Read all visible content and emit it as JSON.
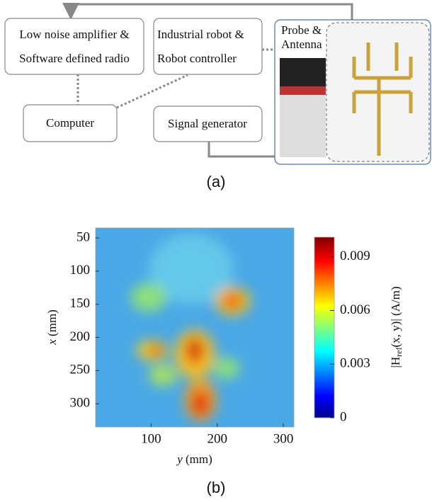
{
  "diagram": {
    "boxes": [
      {
        "lines": [
          "Low noise amplifier &",
          "Software defined radio"
        ]
      },
      {
        "lines": [
          "Industrial robot &",
          "Robot controller"
        ]
      },
      {
        "lines": [
          "Computer"
        ]
      },
      {
        "lines": [
          "Signal generator"
        ]
      }
    ],
    "photo_label": [
      "Probe &",
      "Antenna"
    ],
    "caption": "(a)"
  },
  "heatmap": {
    "x_label": [
      "y",
      "(mm)"
    ],
    "y_label": [
      "x",
      "(mm)"
    ],
    "xlim": [
      16,
      316
    ],
    "xticks": [
      100,
      200,
      300
    ],
    "ylim": [
      35,
      335
    ],
    "yticks": [
      50,
      100,
      150,
      200,
      250,
      300
    ],
    "colorbar": {
      "label": [
        "|H",
        "ref",
        "(x, y)| (A/m)"
      ],
      "lim": [
        0,
        0.0101
      ],
      "ticks": [
        0,
        0.003,
        0.006,
        0.009
      ]
    },
    "caption": "(b)"
  }
}
